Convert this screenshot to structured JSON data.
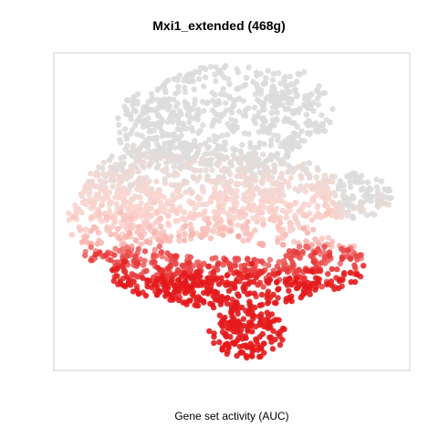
{
  "chart_data": {
    "type": "scatter",
    "title": "Mxi1_extended (468g)",
    "xlabel": "Gene set activity (AUC)",
    "ylabel": "",
    "embedding": "tSNE-like cell map (axes unlabelled, no ticks)",
    "grid": false,
    "legend": "none",
    "point_count_estimate": 2600,
    "color_scale": {
      "low": "#dcdcdc",
      "mid": "#fbd5cf",
      "high": "#e41a1c",
      "meaning": "grey = low activity, light pink = moderate, red = high AUC"
    },
    "regions": [
      {
        "name": "upper-grey-cluster",
        "level": "low"
      },
      {
        "name": "central-pink-body",
        "level": "moderate"
      },
      {
        "name": "right-lobe",
        "level": "moderate"
      },
      {
        "name": "lower-band",
        "level": "high"
      },
      {
        "name": "bottom-lobe",
        "level": "high"
      }
    ]
  }
}
